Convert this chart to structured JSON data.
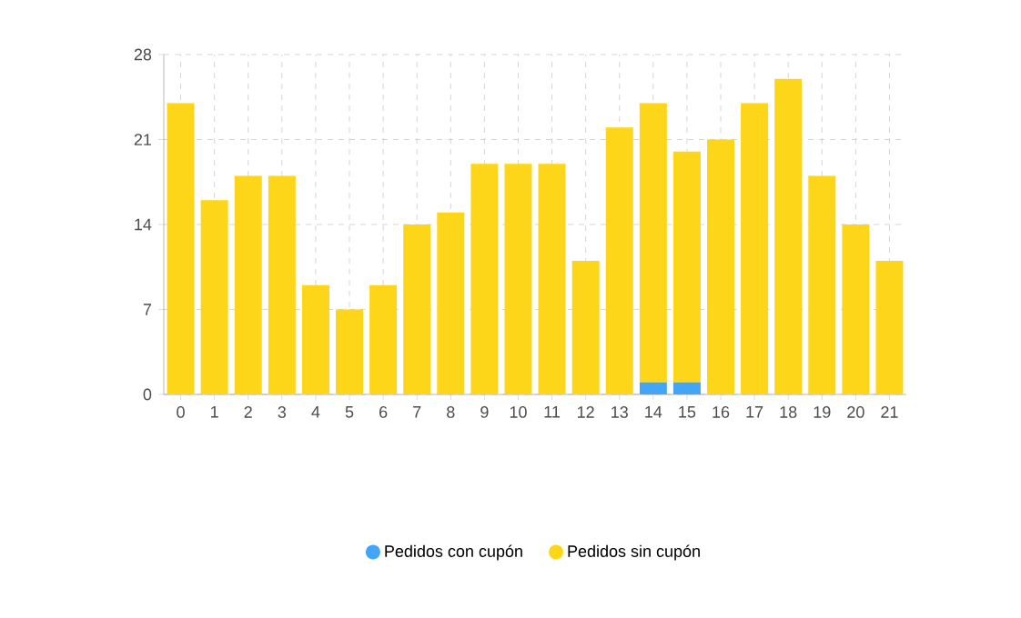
{
  "chart_data": {
    "type": "bar",
    "stacked": true,
    "categories": [
      "0",
      "1",
      "2",
      "3",
      "4",
      "5",
      "6",
      "7",
      "8",
      "9",
      "10",
      "11",
      "12",
      "13",
      "14",
      "15",
      "16",
      "17",
      "18",
      "19",
      "20",
      "21"
    ],
    "series": [
      {
        "name": "Pedidos con cupón",
        "color": "#42a5f5",
        "values": [
          0,
          0,
          0,
          0,
          0,
          0,
          0,
          0,
          0,
          0,
          0,
          0,
          0,
          0,
          1,
          1,
          0,
          0,
          0,
          0,
          0,
          0
        ]
      },
      {
        "name": "Pedidos sin cupón",
        "color": "#fdd519",
        "values": [
          24,
          16,
          18,
          18,
          9,
          7,
          9,
          14,
          15,
          19,
          19,
          19,
          11,
          22,
          23,
          19,
          21,
          24,
          26,
          18,
          14,
          11
        ]
      }
    ],
    "ylim": [
      0,
      28
    ],
    "yticks": [
      0,
      7,
      14,
      21,
      28
    ],
    "grid": true,
    "legend": "bottom"
  }
}
